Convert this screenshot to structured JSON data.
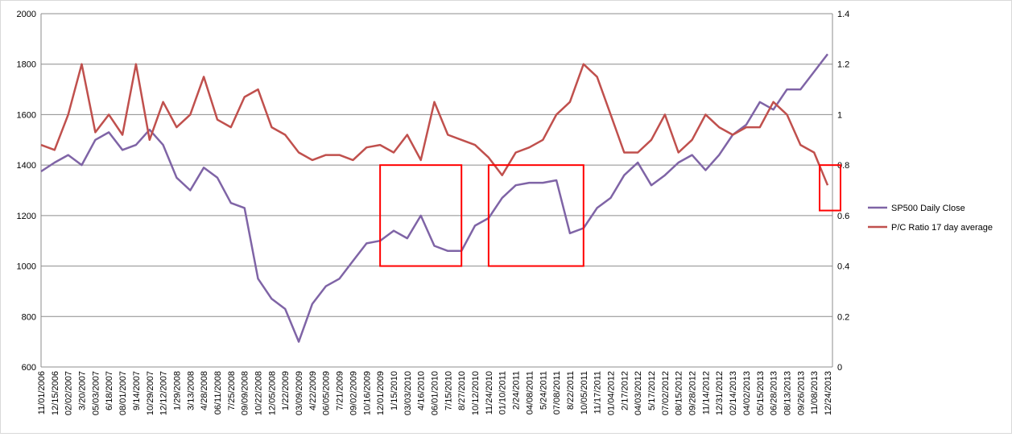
{
  "chart_data": {
    "type": "line",
    "title": "",
    "xlabel": "",
    "ylabel": "",
    "y_left_lim": [
      600,
      2000
    ],
    "y_left_ticks": [
      "600",
      "800",
      "1000",
      "1200",
      "1400",
      "1600",
      "1800",
      "2000"
    ],
    "y_right_lim": [
      0,
      1.4
    ],
    "y_right_ticks": [
      "0",
      "0.2",
      "0.4",
      "0.6",
      "0.8",
      "1",
      "1.2",
      "1.4"
    ],
    "grid": true,
    "legend_position": "right",
    "x": [
      "11/01/2006",
      "12/15/2006",
      "02/02/2007",
      "3/20/2007",
      "05/03/2007",
      "6/18/2007",
      "08/01/2007",
      "9/14/2007",
      "10/29/2007",
      "12/12/2007",
      "1/29/2008",
      "3/13/2008",
      "4/28/2008",
      "06/11/2008",
      "7/25/2008",
      "09/09/2008",
      "10/22/2008",
      "12/05/2008",
      "1/22/2009",
      "03/09/2009",
      "4/22/2009",
      "06/05/2009",
      "7/21/2009",
      "09/02/2009",
      "10/16/2009",
      "12/01/2009",
      "1/15/2010",
      "03/03/2010",
      "4/16/2010",
      "06/01/2010",
      "7/15/2010",
      "8/27/2010",
      "10/12/2010",
      "11/24/2010",
      "01/10/2011",
      "2/24/2011",
      "04/08/2011",
      "5/24/2011",
      "07/08/2011",
      "8/22/2011",
      "10/05/2011",
      "11/17/2011",
      "01/04/2012",
      "2/17/2012",
      "04/03/2012",
      "5/17/2012",
      "07/02/2012",
      "08/15/2012",
      "09/28/2012",
      "11/14/2012",
      "12/31/2012",
      "02/14/2013",
      "04/02/2013",
      "05/15/2013",
      "06/28/2013",
      "08/13/2013",
      "09/26/2013",
      "11/08/2013",
      "12/24/2013"
    ],
    "series": [
      {
        "name": "SP500 Daily Close",
        "axis": "left",
        "color": "#7f64a6",
        "values": [
          1375,
          1410,
          1440,
          1400,
          1500,
          1530,
          1460,
          1480,
          1540,
          1480,
          1350,
          1300,
          1390,
          1350,
          1250,
          1230,
          950,
          870,
          830,
          700,
          850,
          920,
          950,
          1020,
          1090,
          1100,
          1140,
          1110,
          1200,
          1080,
          1060,
          1060,
          1160,
          1190,
          1270,
          1320,
          1330,
          1330,
          1340,
          1130,
          1150,
          1230,
          1270,
          1360,
          1410,
          1320,
          1360,
          1410,
          1440,
          1380,
          1440,
          1520,
          1560,
          1650,
          1620,
          1700,
          1700,
          1770,
          1840
        ]
      },
      {
        "name": "P/C Ratio 17 day average",
        "axis": "right",
        "color": "#c0504d",
        "values": [
          0.88,
          0.86,
          1.0,
          1.2,
          0.93,
          1.0,
          0.92,
          1.2,
          0.9,
          1.05,
          0.95,
          1.0,
          1.15,
          0.98,
          0.95,
          1.07,
          1.1,
          0.95,
          0.92,
          0.85,
          0.82,
          0.84,
          0.84,
          0.82,
          0.87,
          0.88,
          0.85,
          0.92,
          0.82,
          1.05,
          0.92,
          0.9,
          0.88,
          0.83,
          0.76,
          0.85,
          0.87,
          0.9,
          1.0,
          1.05,
          1.2,
          1.15,
          1.0,
          0.85,
          0.85,
          0.9,
          1.0,
          0.85,
          0.9,
          1.0,
          0.95,
          0.92,
          0.95,
          0.95,
          1.05,
          1.0,
          0.88,
          0.85,
          0.72
        ]
      }
    ],
    "annotations": [
      {
        "type": "rect",
        "axis": "left",
        "x_from": "12/01/2009",
        "x_to": "8/27/2010",
        "y_from": 1000,
        "y_to": 1400,
        "color": "#ff0000"
      },
      {
        "type": "rect",
        "axis": "left",
        "x_from": "11/24/2010",
        "x_to": "10/05/2011",
        "y_from": 1000,
        "y_to": 1400,
        "color": "#ff0000"
      },
      {
        "type": "rect",
        "axis": "right",
        "x_from": "12/24/2013",
        "x_to": "12/24/2013",
        "y_from": 0.62,
        "y_to": 0.8,
        "color": "#ff0000"
      }
    ]
  }
}
